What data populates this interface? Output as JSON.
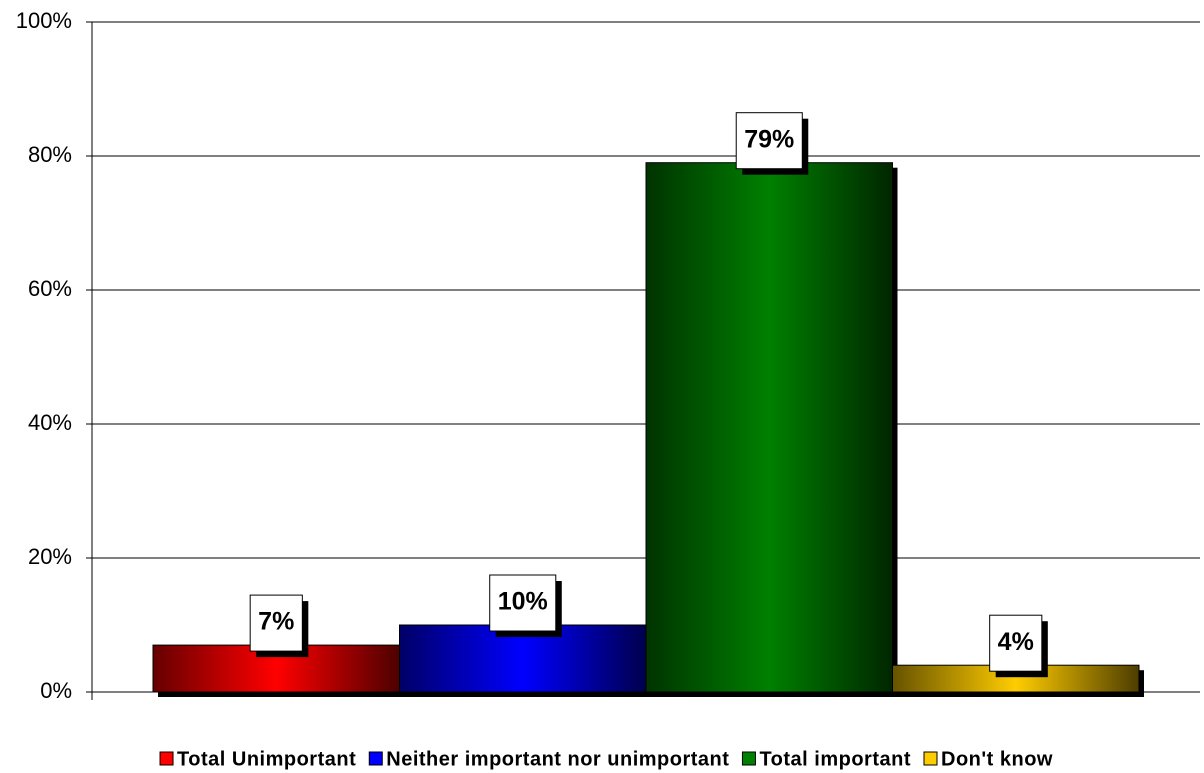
{
  "chart_data": {
    "type": "bar",
    "series": [
      {
        "name": "Total Unimportant",
        "color": "#ff0000",
        "values": [
          7
        ],
        "value_labels": [
          "7%"
        ]
      },
      {
        "name": "Neither important nor unimportant",
        "color": "#0000ff",
        "values": [
          10
        ],
        "value_labels": [
          "10%"
        ]
      },
      {
        "name": "Total important",
        "color": "#008000",
        "values": [
          79
        ],
        "value_labels": [
          "79%"
        ]
      },
      {
        "name": "Don't know",
        "color": "#ffcc00",
        "values": [
          4
        ],
        "value_labels": [
          "4%"
        ]
      }
    ],
    "ylim": [
      0,
      100
    ],
    "yticks": [
      {
        "value": 0,
        "label": "0%"
      },
      {
        "value": 20,
        "label": "20%"
      },
      {
        "value": 40,
        "label": "40%"
      },
      {
        "value": 60,
        "label": "60%"
      },
      {
        "value": 80,
        "label": "80%"
      },
      {
        "value": 100,
        "label": "100%"
      }
    ],
    "grid": true,
    "legend": "bottom"
  }
}
